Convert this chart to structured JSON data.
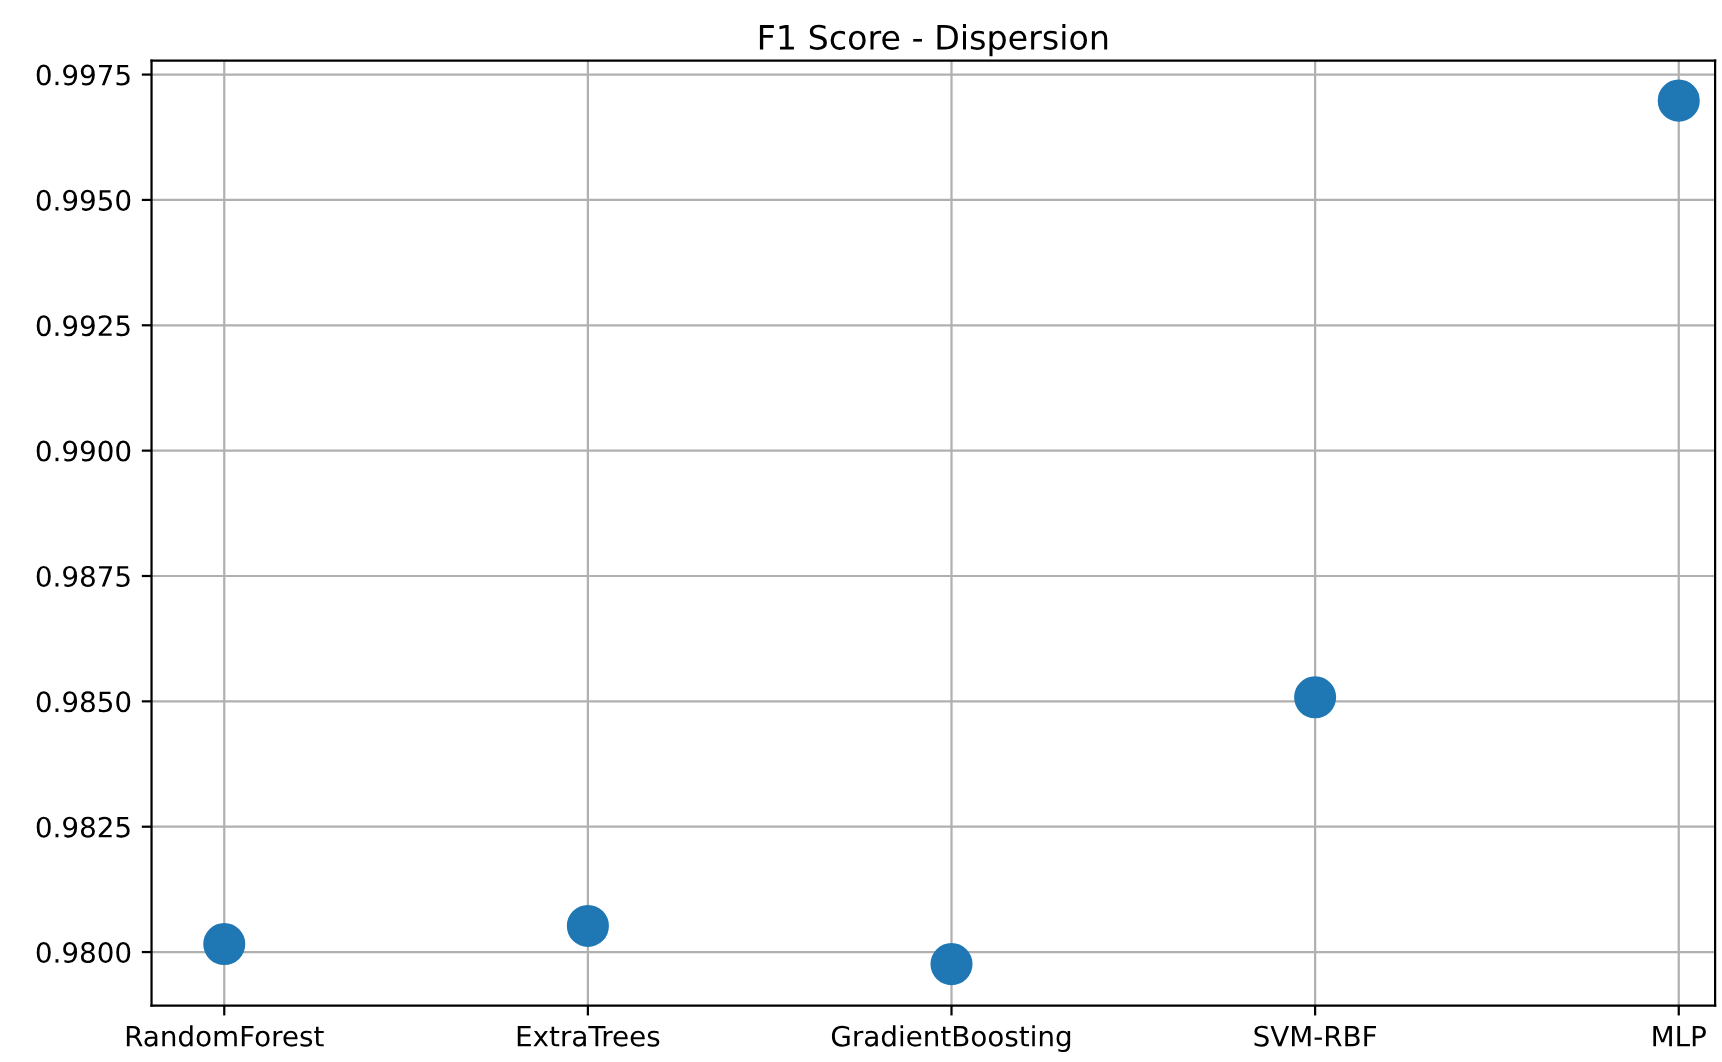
{
  "chart_data": {
    "type": "scatter",
    "title": "F1 Score - Dispersion",
    "categories": [
      "RandomForest",
      "ExtraTrees",
      "GradientBoosting",
      "SVM-RBF",
      "MLP"
    ],
    "values": [
      0.98016,
      0.98052,
      0.97976,
      0.98508,
      0.99698
    ],
    "color": "#1f77b4",
    "marker": "circle",
    "ylim": [
      0.97893,
      0.99778
    ],
    "yticks": [
      {
        "value": 0.98,
        "label": "0.9800"
      },
      {
        "value": 0.9825,
        "label": "0.9825"
      },
      {
        "value": 0.985,
        "label": "0.9850"
      },
      {
        "value": 0.9875,
        "label": "0.9875"
      },
      {
        "value": 0.99,
        "label": "0.9900"
      },
      {
        "value": 0.9925,
        "label": "0.9925"
      },
      {
        "value": 0.995,
        "label": "0.9950"
      },
      {
        "value": 0.9975,
        "label": "0.9975"
      }
    ],
    "grid": true
  }
}
